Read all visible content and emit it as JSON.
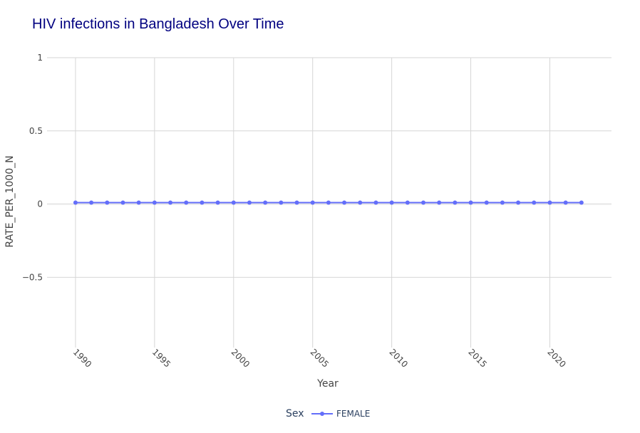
{
  "chart_data": {
    "type": "line",
    "title": "HIV infections in Bangladesh Over Time",
    "xlabel": "Year",
    "ylabel": "RATE_PER_1000_N",
    "xlim": [
      1988.2,
      2023.9
    ],
    "ylim": [
      -0.98,
      1.0
    ],
    "xticks": [
      1990,
      1995,
      2000,
      2005,
      2010,
      2015,
      2020
    ],
    "yticks": [
      1,
      0.5,
      0,
      -0.5
    ],
    "ytick_labels": [
      "1",
      "0.5",
      "0",
      "−0.5"
    ],
    "legend": {
      "title": "Sex",
      "placement": "bottom-center"
    },
    "grid": true,
    "series": [
      {
        "name": "FEMALE",
        "color": "#636efa",
        "x": [
          1990,
          1991,
          1992,
          1993,
          1994,
          1995,
          1996,
          1997,
          1998,
          1999,
          2000,
          2001,
          2002,
          2003,
          2004,
          2005,
          2006,
          2007,
          2008,
          2009,
          2010,
          2011,
          2012,
          2013,
          2014,
          2015,
          2016,
          2017,
          2018,
          2019,
          2020,
          2021,
          2022
        ],
        "y": [
          0.01,
          0.01,
          0.01,
          0.01,
          0.01,
          0.01,
          0.01,
          0.01,
          0.01,
          0.01,
          0.01,
          0.01,
          0.01,
          0.01,
          0.01,
          0.01,
          0.01,
          0.01,
          0.01,
          0.01,
          0.01,
          0.01,
          0.01,
          0.01,
          0.01,
          0.01,
          0.01,
          0.01,
          0.01,
          0.01,
          0.01,
          0.01,
          0.01
        ]
      }
    ]
  }
}
